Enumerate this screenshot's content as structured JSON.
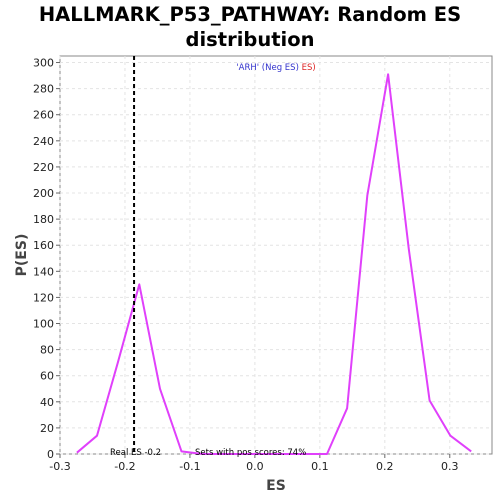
{
  "chart_data": {
    "type": "line",
    "title_line1": "HALLMARK_P53_PATHWAY: Random ES",
    "title_line2": "distribution",
    "xlabel": "ES",
    "ylabel": "P(ES)",
    "xlim": [
      -0.3,
      0.365
    ],
    "ylim": [
      0,
      305
    ],
    "x_ticks": [
      -0.3,
      -0.2,
      -0.1,
      0.0,
      0.1,
      0.2,
      0.3
    ],
    "x_tick_labels": [
      "-0.3",
      "-0.2",
      "-0.1",
      "0.0",
      "0.1",
      "0.2",
      "0.3"
    ],
    "y_ticks": [
      0,
      20,
      40,
      60,
      80,
      100,
      120,
      140,
      160,
      180,
      200,
      220,
      240,
      260,
      280,
      300
    ],
    "y_tick_labels": [
      "0",
      "20",
      "40",
      "60",
      "80",
      "100",
      "120",
      "140",
      "160",
      "180",
      "200",
      "220",
      "240",
      "260",
      "280",
      "300"
    ],
    "grid": true,
    "legend_prefix": "'ARH' (Neg ES)",
    "legend_suffix": " ES)",
    "legend_color": "#3333cc",
    "legend_accent_color": "#dd2222",
    "series": [
      {
        "color": "#e040fb",
        "x": [
          -0.274,
          -0.243,
          -0.211,
          -0.178,
          -0.146,
          -0.113,
          -0.081,
          0.111,
          0.142,
          0.173,
          0.205,
          0.237,
          0.269,
          0.301,
          0.333
        ],
        "y": [
          1,
          14,
          70,
          130,
          50,
          2,
          0,
          0,
          35,
          198,
          291,
          157,
          41,
          14,
          2
        ]
      }
    ],
    "real_es_x": -0.186,
    "real_es_line_color": "#000000",
    "real_es_label": "Real ES -0.2",
    "pos_scores_label": "Sets with pos scores: 74%"
  }
}
